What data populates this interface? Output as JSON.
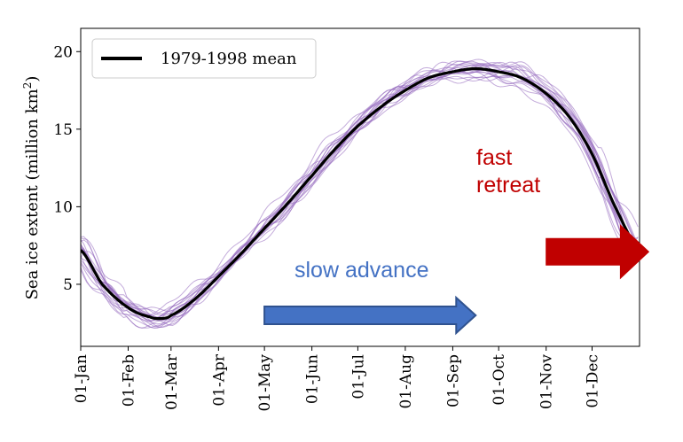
{
  "chart_data": {
    "type": "line",
    "title": "",
    "xlabel": "",
    "ylabel": "Sea ice extent (million km",
    "ylabel_sup": "2",
    "ylabel_close": ")",
    "xlim": [
      1,
      366
    ],
    "ylim": [
      1.0,
      21.5
    ],
    "y_ticks": [
      5,
      10,
      15,
      20
    ],
    "x_ticks": [
      {
        "label": "01-Jan",
        "day": 1
      },
      {
        "label": "01-Feb",
        "day": 32
      },
      {
        "label": "01-Mar",
        "day": 60
      },
      {
        "label": "01-Apr",
        "day": 91
      },
      {
        "label": "01-May",
        "day": 121
      },
      {
        "label": "01-Jun",
        "day": 152
      },
      {
        "label": "01-Jul",
        "day": 182
      },
      {
        "label": "01-Aug",
        "day": 213
      },
      {
        "label": "01-Sep",
        "day": 244
      },
      {
        "label": "01-Oct",
        "day": 274
      },
      {
        "label": "01-Nov",
        "day": 305
      },
      {
        "label": "01-Dec",
        "day": 335
      }
    ],
    "grid": false,
    "legend": {
      "position": "top-left",
      "entries": [
        "1979-1998 mean"
      ]
    },
    "mean_series": {
      "name": "1979-1998 mean",
      "color": "#000000",
      "x": [
        1,
        15,
        32,
        46,
        54,
        60,
        75,
        91,
        106,
        121,
        136,
        152,
        167,
        182,
        198,
        213,
        228,
        244,
        259,
        274,
        289,
        305,
        320,
        335,
        350,
        366
      ],
      "y": [
        7.2,
        5.0,
        3.5,
        2.9,
        2.8,
        3.0,
        4.0,
        5.5,
        7.0,
        8.6,
        10.2,
        12.0,
        13.7,
        15.2,
        16.5,
        17.5,
        18.3,
        18.7,
        18.9,
        18.7,
        18.3,
        17.3,
        15.8,
        13.4,
        10.0,
        7.2
      ]
    },
    "yearly_series": {
      "count": 20,
      "color": "#9467bd",
      "description_range": "individual years 1979-1998"
    },
    "annotations": [
      {
        "text": "slow advance",
        "color": "#4472c4"
      },
      {
        "text_line1": "fast",
        "text_line2": "retreat",
        "color": "#c00000"
      }
    ],
    "arrows": [
      {
        "name": "slow-advance-arrow",
        "fill": "#4472c4",
        "stroke": "#2f528f",
        "from_day": 121,
        "to_day": 259,
        "y": 3.0
      },
      {
        "name": "fast-retreat-arrow",
        "fill": "#c00000",
        "stroke": "#c00000",
        "from_day": 305,
        "to_day": 372,
        "y": 7.1
      }
    ]
  }
}
